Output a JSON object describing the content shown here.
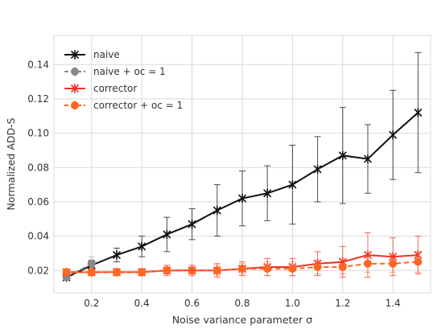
{
  "chart_data": {
    "type": "line",
    "xlabel": "Noise variance parameter σ",
    "ylabel": "Normalized ADD-S",
    "xlim": [
      0.05,
      1.55
    ],
    "ylim": [
      0.007,
      0.157
    ],
    "xticks": [
      0.2,
      0.4,
      0.6,
      0.8,
      1.0,
      1.2,
      1.4
    ],
    "xtick_labels": [
      "0.2",
      "0.4",
      "0.6",
      "0.8",
      "1.0",
      "1.2",
      "1.4"
    ],
    "yticks": [
      0.02,
      0.04,
      0.06,
      0.08,
      0.1,
      0.12,
      0.14
    ],
    "ytick_labels": [
      "0.02",
      "0.04",
      "0.06",
      "0.08",
      "0.10",
      "0.12",
      "0.14"
    ],
    "grid": true,
    "legend_position": "top-left",
    "x": [
      0.1,
      0.2,
      0.3,
      0.4,
      0.5,
      0.6,
      0.7,
      0.8,
      0.9,
      1.0,
      1.1,
      1.2,
      1.3,
      1.4,
      1.5
    ],
    "series": [
      {
        "name": "naive",
        "color": "#111111",
        "marker": "x",
        "dashed": false,
        "x": [
          0.1,
          0.2,
          0.3,
          0.4,
          0.5,
          0.6,
          0.7,
          0.8,
          0.9,
          1.0,
          1.1,
          1.2,
          1.3,
          1.4,
          1.5
        ],
        "values": [
          0.016,
          0.023,
          0.029,
          0.034,
          0.041,
          0.047,
          0.055,
          0.062,
          0.065,
          0.07,
          0.079,
          0.087,
          0.085,
          0.099,
          0.112
        ],
        "err": [
          0.0015,
          0.003,
          0.004,
          0.006,
          0.01,
          0.009,
          0.015,
          0.016,
          0.016,
          0.023,
          0.019,
          0.028,
          0.02,
          0.026,
          0.035
        ]
      },
      {
        "name": "naive + oc = 1",
        "color": "#888888",
        "marker": "circle",
        "dashed": true,
        "x": [
          0.1,
          0.2
        ],
        "values": [
          0.016,
          0.024
        ],
        "err": [
          0.0015,
          0.004
        ]
      },
      {
        "name": "corrector",
        "color": "#ee3322",
        "marker": "x",
        "dashed": false,
        "x": [
          0.1,
          0.2,
          0.3,
          0.4,
          0.5,
          0.6,
          0.7,
          0.8,
          0.9,
          1.0,
          1.1,
          1.2,
          1.3,
          1.4,
          1.5
        ],
        "values": [
          0.019,
          0.019,
          0.019,
          0.019,
          0.02,
          0.02,
          0.02,
          0.021,
          0.022,
          0.022,
          0.024,
          0.025,
          0.029,
          0.028,
          0.029
        ],
        "err": [
          0.0015,
          0.002,
          0.002,
          0.002,
          0.003,
          0.003,
          0.004,
          0.004,
          0.005,
          0.005,
          0.007,
          0.009,
          0.013,
          0.011,
          0.011
        ]
      },
      {
        "name": "corrector + oc = 1",
        "color": "#ff6622",
        "marker": "circle",
        "dashed": true,
        "x": [
          0.1,
          0.2,
          0.3,
          0.4,
          0.5,
          0.6,
          0.7,
          0.8,
          0.9,
          1.0,
          1.1,
          1.2,
          1.3,
          1.4,
          1.5
        ],
        "values": [
          0.019,
          0.019,
          0.019,
          0.019,
          0.02,
          0.02,
          0.02,
          0.021,
          0.021,
          0.021,
          0.022,
          0.022,
          0.024,
          0.024,
          0.025
        ],
        "err": [
          0.0015,
          0.002,
          0.002,
          0.002,
          0.002,
          0.002,
          0.003,
          0.003,
          0.004,
          0.004,
          0.004,
          0.004,
          0.005,
          0.005,
          0.006
        ]
      }
    ]
  }
}
